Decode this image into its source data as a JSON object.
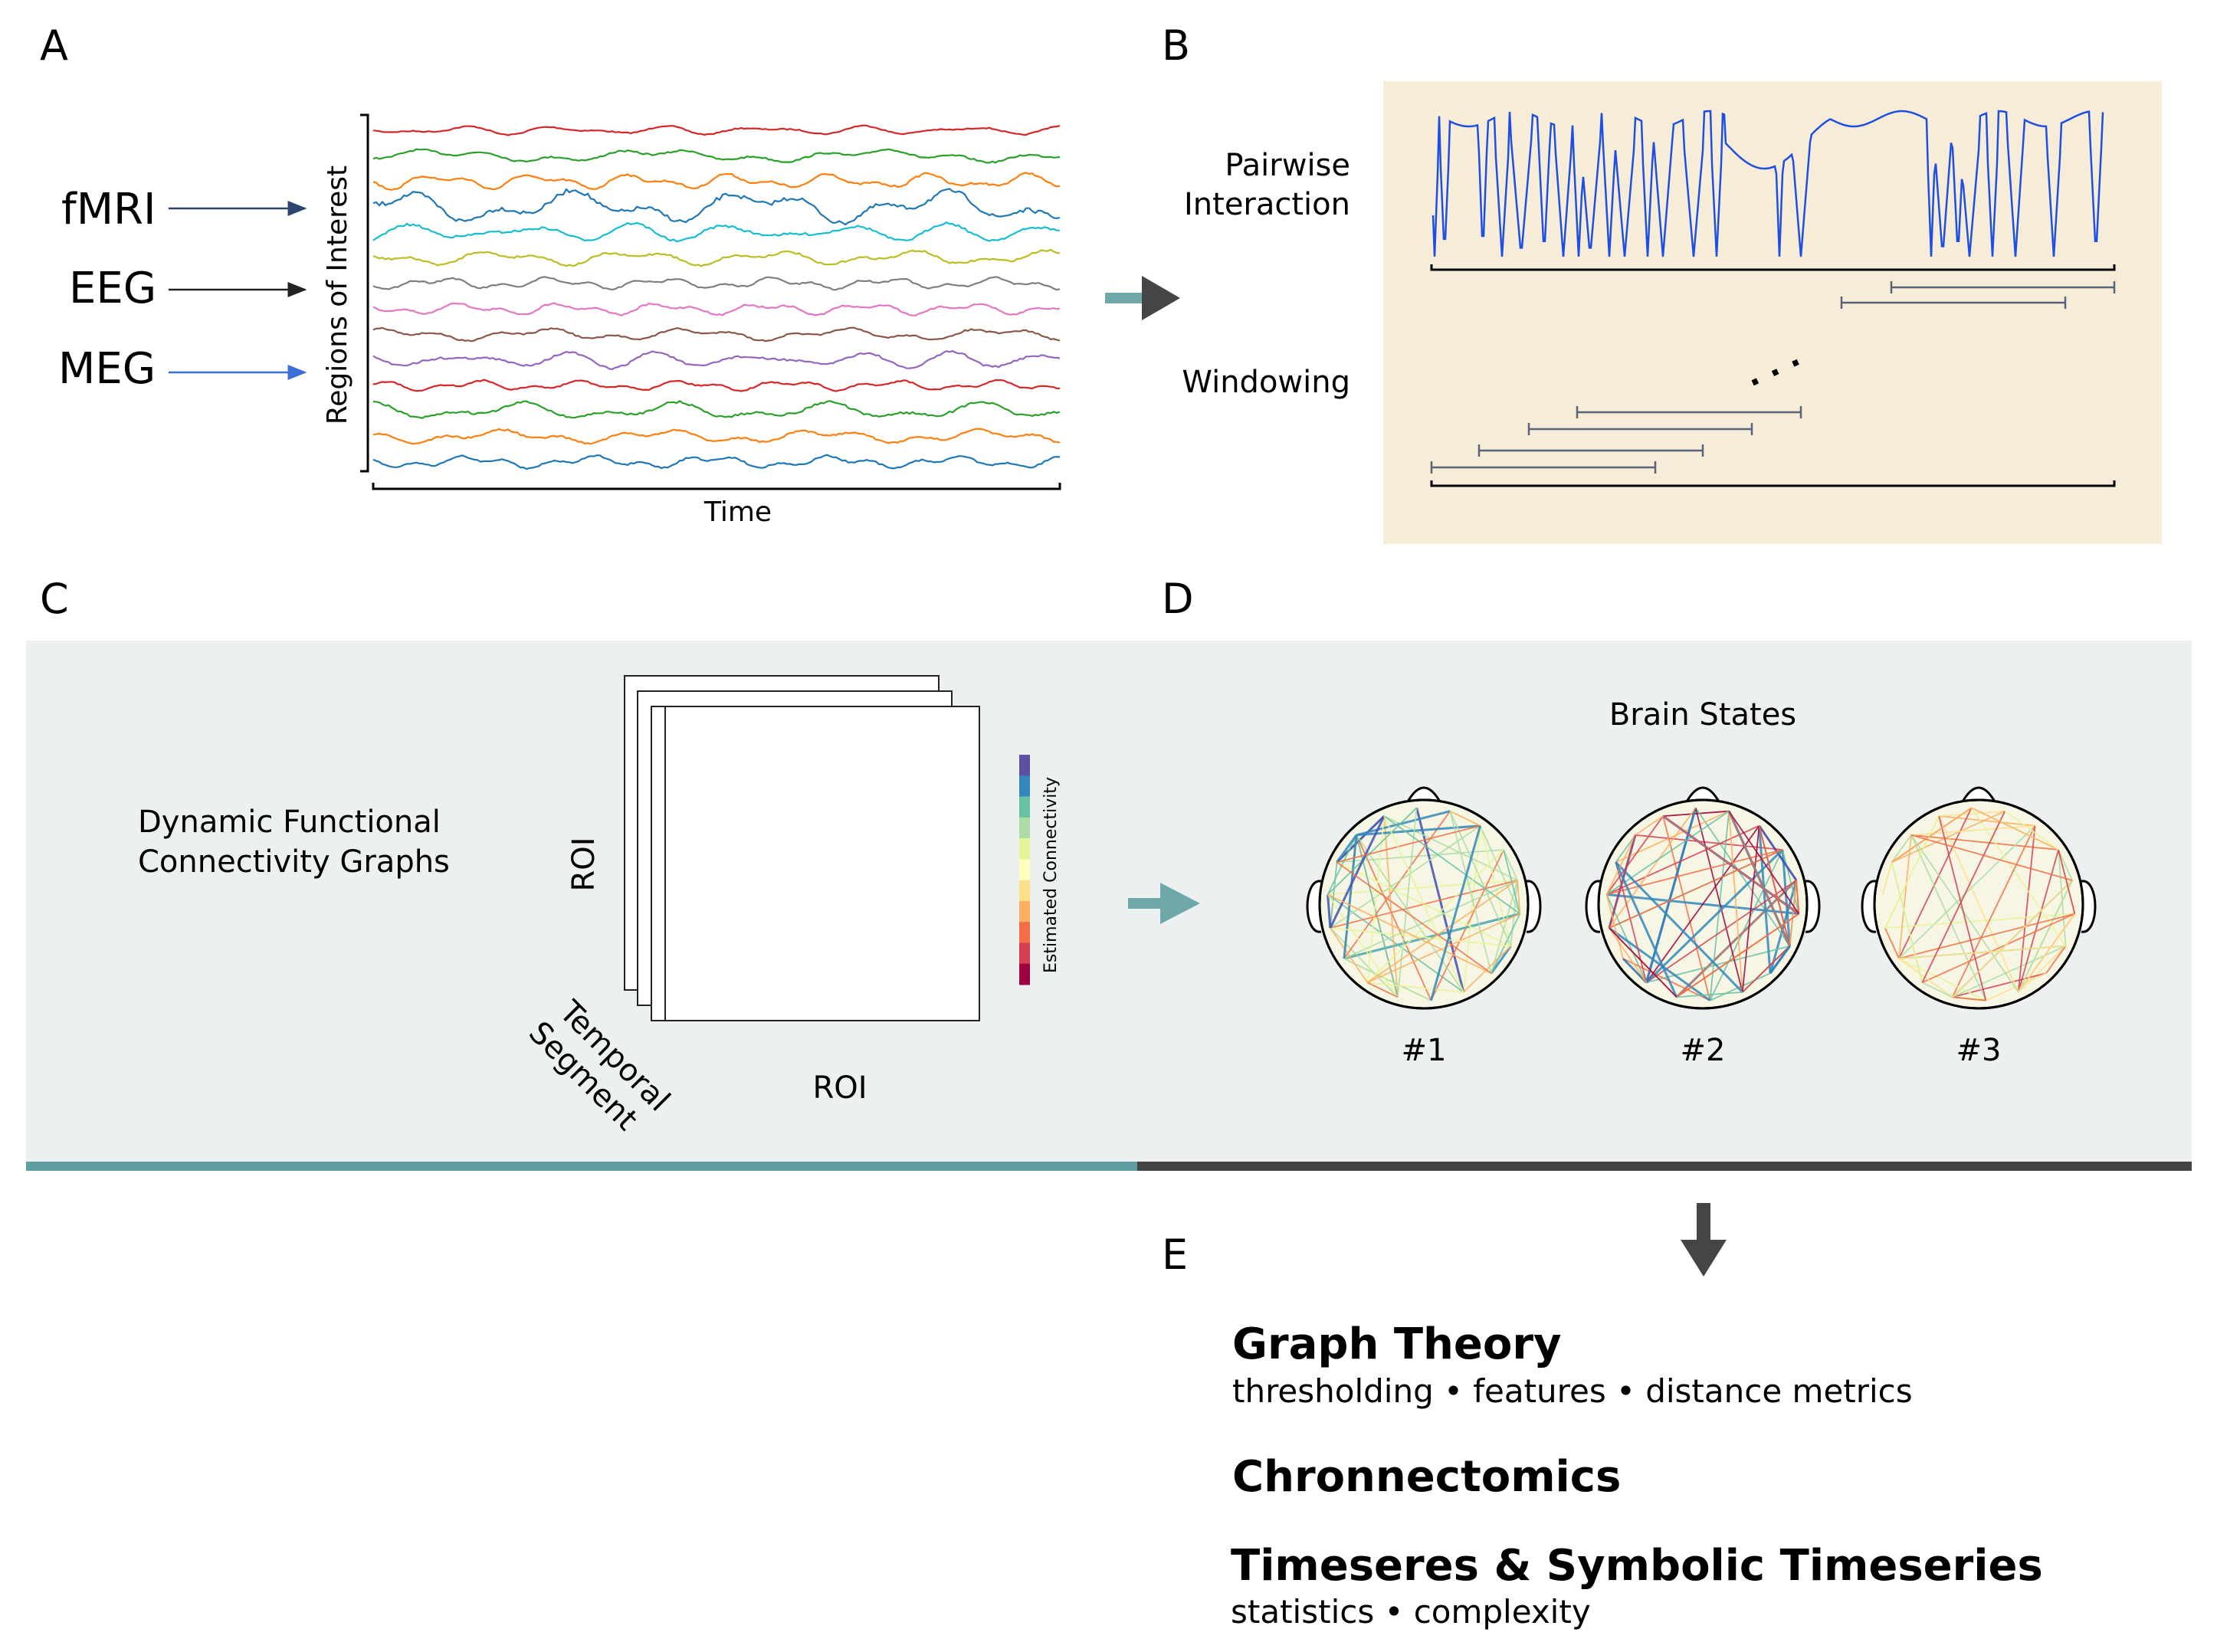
{
  "panels": {
    "a": {
      "letter": "A",
      "modalities": [
        "fMRI",
        "EEG",
        "MEG"
      ],
      "y_label": "Regions of Interest",
      "x_label": "Time",
      "series_colors": [
        "#d62728",
        "#2ca02c",
        "#ff7f0e",
        "#1f77b4",
        "#17becf",
        "#bcbd22",
        "#7f7f7f",
        "#e377c2",
        "#8c564b",
        "#9467bd",
        "#d62728",
        "#2ca02c",
        "#ff7f0e",
        "#1f77b4"
      ]
    },
    "b": {
      "letter": "B",
      "label_pairwise_1": "Pairwise",
      "label_pairwise_2": "Interaction",
      "label_windowing": "Windowing",
      "ellipsis": ". . ."
    },
    "c": {
      "letter": "C",
      "title_1": "Dynamic Functional",
      "title_2": "Connectivity Graphs",
      "matrix_y_label": "ROI",
      "matrix_x_label": "ROI",
      "depth_label_1": "Temporal",
      "depth_label_2": "Segment",
      "colorbar_label": "Estimated Connectivity",
      "matrix_size": 14
    },
    "d": {
      "letter": "D",
      "title": "Brain States",
      "states": [
        "#1",
        "#2",
        "#3"
      ]
    },
    "e": {
      "letter": "E",
      "items": [
        {
          "title": "Graph Theory",
          "subtitle": "thresholding • features • distance metrics"
        },
        {
          "title": "Chronnectomics",
          "subtitle": ""
        },
        {
          "title": "Timeseres & Symbolic Timeseries",
          "subtitle": "statistics • complexity"
        }
      ]
    }
  },
  "colors": {
    "teal_arrow": "#6fa8a8",
    "dark_arrow": "#454545",
    "panel_b_bg": "#f6ecd8",
    "panel_cd_bg": "#edf0f0",
    "teal_bar": "#5e9ea0",
    "dark_bar": "#444444",
    "pairwise_line": "#1f4fe0",
    "window_bar": "#5a6478"
  }
}
